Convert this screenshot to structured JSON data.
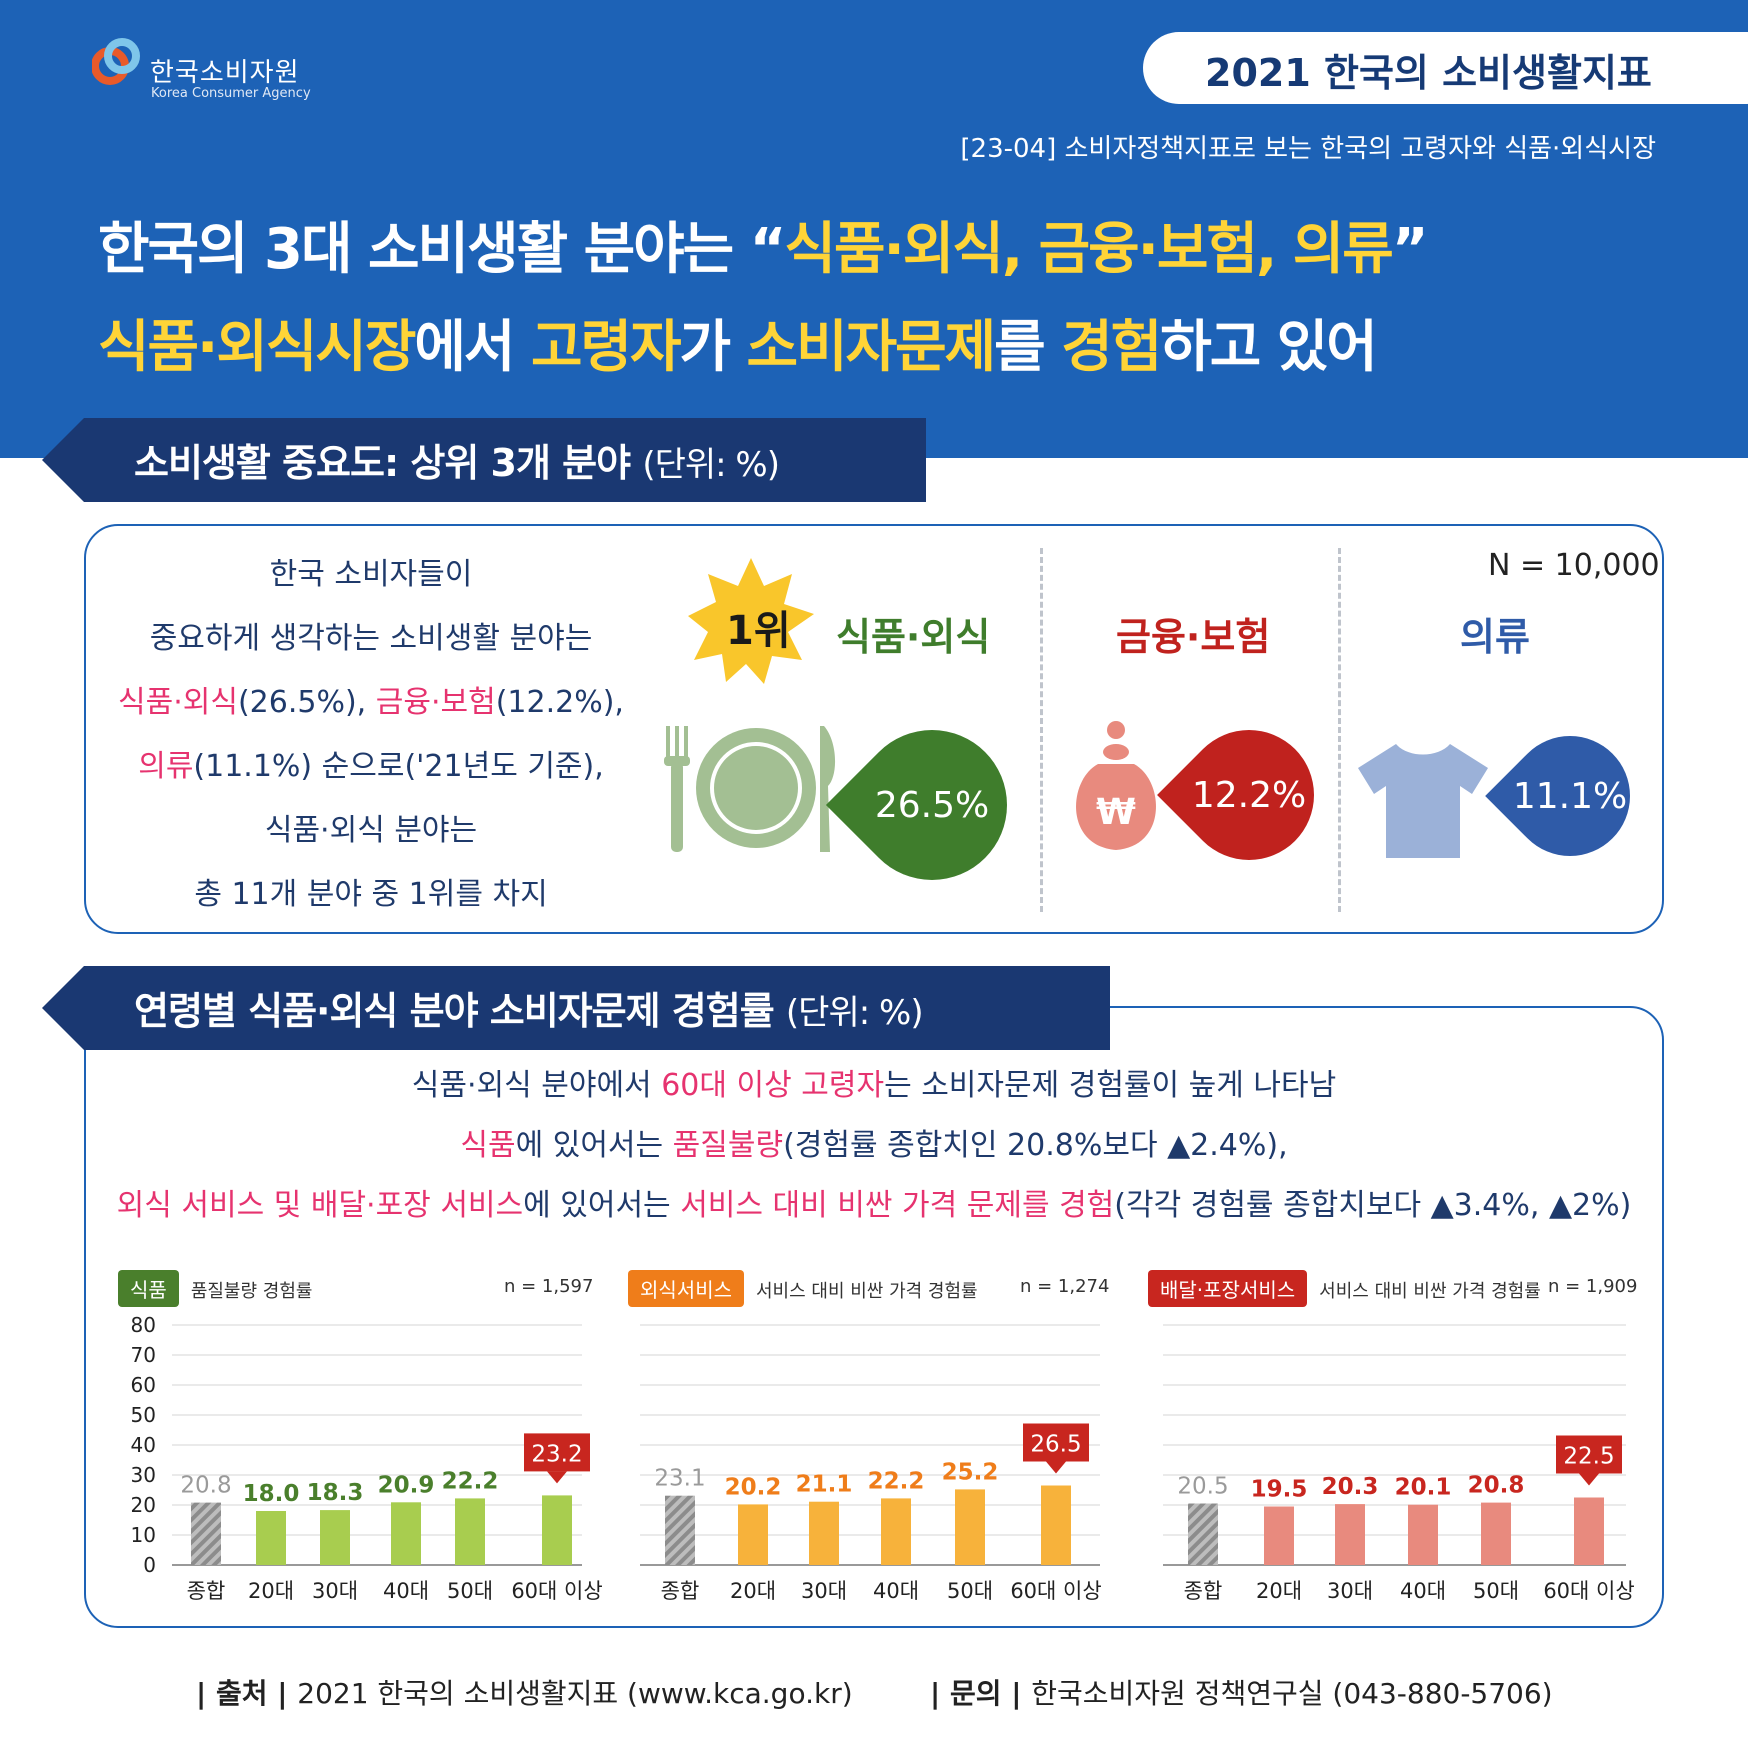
{
  "header": {
    "logo_name": "한국소비자원",
    "logo_en": "Korea Consumer Agency",
    "badge": "2021 한국의 소비생활지표",
    "subtitle": "[23-04] 소비자정책지표로 보는 한국의 고령자와 식품·외식시장",
    "line1_a": "한국의 3대 소비생활 분야는 “",
    "line1_b": "식품·외식, 금융·보험, 의류",
    "line1_c": "”",
    "line2_a": "식품·외식시장",
    "line2_b": "에서 ",
    "line2_c": "고령자",
    "line2_d": "가 ",
    "line2_e": "소비자문제",
    "line2_f": "를 ",
    "line2_g": "경험",
    "line2_h": "하고 있어"
  },
  "section1": {
    "title": "소비생활 중요도: 상위 3개 분야",
    "unit": "(단위: %)",
    "n_label": "N = 10,000",
    "desc_l1": "한국 소비자들이",
    "desc_l2": "중요하게 생각하는 소비생활 분야는",
    "desc_l3_a": "식품·외식",
    "desc_l3_b": "(26.5%), ",
    "desc_l3_c": "금융·보험",
    "desc_l3_d": "(12.2%),",
    "desc_l4_a": "의류",
    "desc_l4_b": "(11.1%) 순으로('21년도 기준),",
    "desc_l5": "식품·외식 분야는",
    "desc_l6": "총 11개 분야 중 1위를 차지",
    "rank_badge": "1위",
    "categories": [
      {
        "name": "식품·외식",
        "value": "26.5%",
        "color": "#3f7d2c",
        "icon": "plate-icon"
      },
      {
        "name": "금융·보험",
        "value": "12.2%",
        "color": "#c0221e",
        "icon": "money-bag-icon"
      },
      {
        "name": "의류",
        "value": "11.1%",
        "color": "#2f5ba8",
        "icon": "tshirt-icon"
      }
    ]
  },
  "section2": {
    "title": "연령별 식품·외식 분야 소비자문제 경험률",
    "unit": "(단위: %)",
    "s1_a": "식품·외식 분야에서 ",
    "s1_b": "60대 이상 고령자",
    "s1_c": "는 소비자문제 경험률이 높게 나타남",
    "s2_a": "식품",
    "s2_b": "에 있어서는 ",
    "s2_c": "품질불량",
    "s2_d": "(경험률 종합치인 20.8%보다 ▲2.4%),",
    "s3_a": "외식 서비스 및 배달·포장 서비스",
    "s3_b": "에 있어서는 ",
    "s3_c": "서비스 대비 비싼 가격 문제를 경험",
    "s3_d": "(각각 경험률 종합치보다 ▲3.4%, ▲2%)"
  },
  "chart_data": [
    {
      "type": "bar",
      "badge": "식품",
      "subtitle": "품질불량 경험률",
      "n": "n = 1,597",
      "badge_color": "#4a7f2c",
      "bar_color": "#a8cd4f",
      "label_color": "#4a7f2c",
      "categories": [
        "종합",
        "20대",
        "30대",
        "40대",
        "50대",
        "60대 이상"
      ],
      "values": [
        20.8,
        18.0,
        18.3,
        20.9,
        22.2,
        23.2
      ],
      "value_labels": [
        "20.8",
        "18.0",
        "18.3",
        "20.9",
        "22.2",
        "23.2"
      ],
      "yticks": [
        "0",
        "10",
        "20",
        "30",
        "40",
        "50",
        "60",
        "70",
        "80"
      ],
      "ylim": [
        0,
        80
      ]
    },
    {
      "type": "bar",
      "badge": "외식서비스",
      "subtitle": "서비스 대비 비싼 가격 경험률",
      "n": "n = 1,274",
      "badge_color": "#ef7d1a",
      "bar_color": "#f7b23b",
      "label_color": "#ef7d1a",
      "categories": [
        "종합",
        "20대",
        "30대",
        "40대",
        "50대",
        "60대 이상"
      ],
      "values": [
        23.1,
        20.2,
        21.1,
        22.2,
        25.2,
        26.5
      ],
      "value_labels": [
        "23.1",
        "20.2",
        "21.1",
        "22.2",
        "25.2",
        "26.5"
      ],
      "ylim": [
        0,
        80
      ]
    },
    {
      "type": "bar",
      "badge": "배달·포장서비스",
      "subtitle": "서비스 대비 비싼 가격 경험률",
      "n": "n = 1,909",
      "badge_color": "#c8261f",
      "bar_color": "#e88a7e",
      "label_color": "#c8261f",
      "categories": [
        "종합",
        "20대",
        "30대",
        "40대",
        "50대",
        "60대 이상"
      ],
      "values": [
        20.5,
        19.5,
        20.3,
        20.1,
        20.8,
        22.5
      ],
      "value_labels": [
        "20.5",
        "19.5",
        "20.3",
        "20.1",
        "20.8",
        "22.5"
      ],
      "ylim": [
        0,
        80
      ]
    }
  ],
  "footer": {
    "source_label": "출처",
    "source_text": "2021 한국의 소비생활지표 (www.kca.go.kr)",
    "contact_label": "문의",
    "contact_text": "한국소비자원 정책연구실 (043-880-5706)"
  }
}
